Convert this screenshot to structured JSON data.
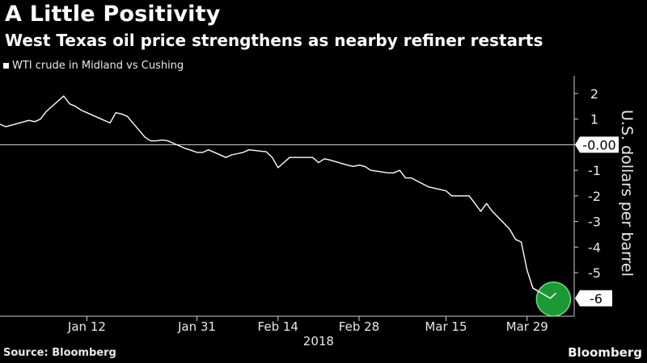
{
  "title": "A Little Positivity",
  "subtitle": "West Texas oil price strengthens as nearby refiner restarts",
  "legend": {
    "label": "WTI crude in Midland vs Cushing",
    "color": "#ffffff"
  },
  "source": "Source: Bloomberg",
  "brand": "Bloomberg",
  "colors": {
    "background": "#000000",
    "line": "#ffffff",
    "highlight": "#1fa83a",
    "highlight_edge": "#6ee07f"
  },
  "chart_data": {
    "type": "line",
    "title": "A Little Positivity",
    "subtitle": "West Texas oil price strengthens as nearby refiner restarts",
    "ylabel": "U.S. dollars per barrel",
    "xlabel": "",
    "year_label": "2018",
    "ylim": [
      -6.7,
      2.5
    ],
    "xlim": [
      "2017-12-28",
      "2018-04-06"
    ],
    "y_ticks": [
      2,
      1,
      -1,
      -2,
      -3,
      -4,
      -5
    ],
    "x_ticks": [
      {
        "date": "2018-01-12",
        "label": "Jan 12"
      },
      {
        "date": "2018-01-31",
        "label": "Jan 31"
      },
      {
        "date": "2018-02-14",
        "label": "Feb 14"
      },
      {
        "date": "2018-02-28",
        "label": "Feb 28"
      },
      {
        "date": "2018-03-15",
        "label": "Mar 15"
      },
      {
        "date": "2018-03-29",
        "label": "Mar 29"
      }
    ],
    "reference_line": {
      "value": 0,
      "label": "-0.00"
    },
    "last_value_label": "-6",
    "grid": false,
    "legend_position": "top-left",
    "series": [
      {
        "name": "WTI crude in Midland vs Cushing",
        "points": [
          [
            "2017-12-28",
            0.8
          ],
          [
            "2017-12-29",
            0.7
          ],
          [
            "2018-01-02",
            0.95
          ],
          [
            "2018-01-03",
            0.9
          ],
          [
            "2018-01-04",
            1.0
          ],
          [
            "2018-01-05",
            1.3
          ],
          [
            "2018-01-08",
            1.9
          ],
          [
            "2018-01-09",
            1.6
          ],
          [
            "2018-01-10",
            1.5
          ],
          [
            "2018-01-11",
            1.35
          ],
          [
            "2018-01-12",
            1.25
          ],
          [
            "2018-01-16",
            0.85
          ],
          [
            "2018-01-17",
            1.25
          ],
          [
            "2018-01-18",
            1.2
          ],
          [
            "2018-01-19",
            1.1
          ],
          [
            "2018-01-22",
            0.3
          ],
          [
            "2018-01-23",
            0.15
          ],
          [
            "2018-01-24",
            0.15
          ],
          [
            "2018-01-25",
            0.18
          ],
          [
            "2018-01-26",
            0.15
          ],
          [
            "2018-01-29",
            -0.15
          ],
          [
            "2018-01-30",
            -0.22
          ],
          [
            "2018-01-31",
            -0.3
          ],
          [
            "2018-02-01",
            -0.3
          ],
          [
            "2018-02-02",
            -0.2
          ],
          [
            "2018-02-05",
            -0.5
          ],
          [
            "2018-02-06",
            -0.4
          ],
          [
            "2018-02-07",
            -0.35
          ],
          [
            "2018-02-08",
            -0.3
          ],
          [
            "2018-02-09",
            -0.2
          ],
          [
            "2018-02-12",
            -0.28
          ],
          [
            "2018-02-13",
            -0.5
          ],
          [
            "2018-02-14",
            -0.9
          ],
          [
            "2018-02-15",
            -0.7
          ],
          [
            "2018-02-16",
            -0.5
          ],
          [
            "2018-02-20",
            -0.5
          ],
          [
            "2018-02-21",
            -0.7
          ],
          [
            "2018-02-22",
            -0.55
          ],
          [
            "2018-02-23",
            -0.6
          ],
          [
            "2018-02-26",
            -0.8
          ],
          [
            "2018-02-27",
            -0.85
          ],
          [
            "2018-02-28",
            -0.8
          ],
          [
            "2018-03-01",
            -0.85
          ],
          [
            "2018-03-02",
            -1.0
          ],
          [
            "2018-03-05",
            -1.1
          ],
          [
            "2018-03-06",
            -1.1
          ],
          [
            "2018-03-07",
            -1.0
          ],
          [
            "2018-03-08",
            -1.3
          ],
          [
            "2018-03-09",
            -1.3
          ],
          [
            "2018-03-12",
            -1.65
          ],
          [
            "2018-03-13",
            -1.7
          ],
          [
            "2018-03-14",
            -1.75
          ],
          [
            "2018-03-15",
            -1.8
          ],
          [
            "2018-03-16",
            -2.0
          ],
          [
            "2018-03-19",
            -2.0
          ],
          [
            "2018-03-20",
            -2.3
          ],
          [
            "2018-03-21",
            -2.6
          ],
          [
            "2018-03-22",
            -2.3
          ],
          [
            "2018-03-23",
            -2.6
          ],
          [
            "2018-03-26",
            -3.3
          ],
          [
            "2018-03-27",
            -3.7
          ],
          [
            "2018-03-28",
            -3.8
          ],
          [
            "2018-03-29",
            -4.9
          ],
          [
            "2018-03-30",
            -5.6
          ],
          [
            "2018-04-02",
            -6.0
          ],
          [
            "2018-04-03",
            -5.8
          ]
        ]
      }
    ],
    "annotations": [
      {
        "type": "circle",
        "date": "2018-04-02",
        "value": -6.0,
        "note": "highlight of latest value"
      }
    ]
  }
}
